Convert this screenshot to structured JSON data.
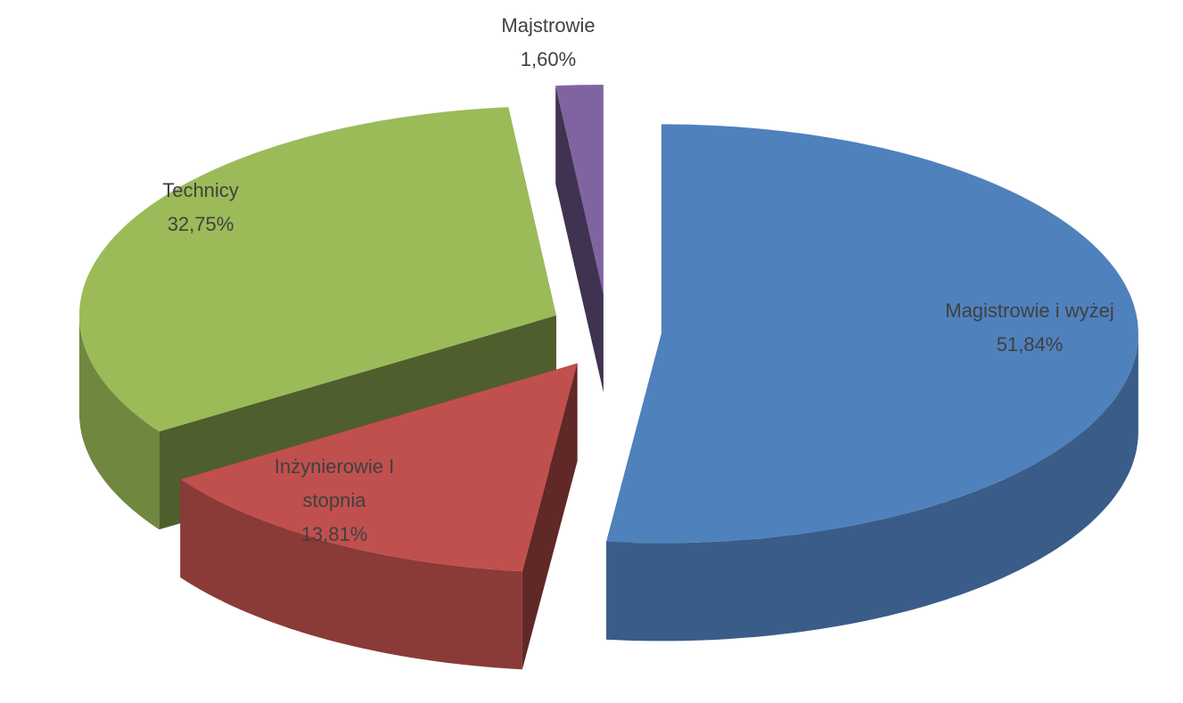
{
  "chart_data": {
    "type": "pie3d",
    "categories": [
      "Magistrowie i wyżej",
      "Inżynierowie I stopnia",
      "Technicy",
      "Majstrowie"
    ],
    "values": [
      51.84,
      13.81,
      32.75,
      1.6
    ],
    "value_labels": [
      "51,84%",
      "13,81%",
      "32,75%",
      "1,60%"
    ],
    "colors": [
      "#4f81bd",
      "#c0504d",
      "#9bbb59",
      "#8064a2"
    ]
  }
}
